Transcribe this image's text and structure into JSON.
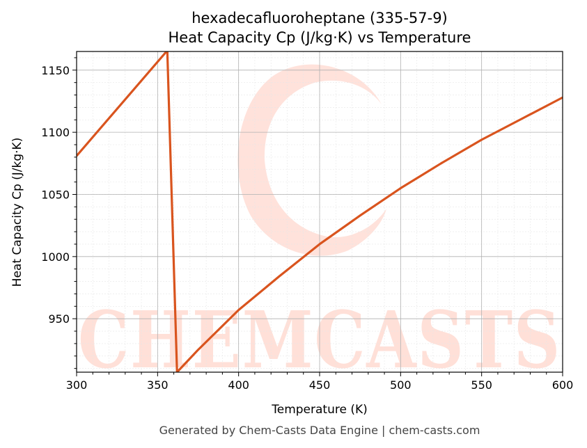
{
  "chart_data": {
    "type": "line",
    "title_line1": "hexadecafluoroheptane (335-57-9)",
    "title_line2": "Heat Capacity Cp (J/kg·K) vs Temperature",
    "xlabel": "Temperature (K)",
    "ylabel": "Heat Capacity Cp (J/kg·K)",
    "xlim": [
      300,
      600
    ],
    "ylim": [
      907,
      1165
    ],
    "x_ticks": [
      300,
      350,
      400,
      450,
      500,
      550,
      600
    ],
    "y_ticks": [
      950,
      1000,
      1050,
      1100,
      1150
    ],
    "grid": true,
    "line_color": "#d9541e",
    "series": [
      {
        "x": [
          300,
          355.5,
          356,
          362,
          375,
          400,
          425,
          450,
          475,
          500,
          525,
          550,
          575,
          600
        ],
        "values": [
          1081,
          1165,
          1165,
          907,
          925,
          957,
          984,
          1010,
          1033,
          1055,
          1075,
          1094,
          1111,
          1128
        ]
      }
    ]
  },
  "watermark": {
    "text": "CHEMCASTS",
    "color": "#ffd6cc"
  },
  "footer": "Generated by Chem-Casts Data Engine | chem-casts.com"
}
